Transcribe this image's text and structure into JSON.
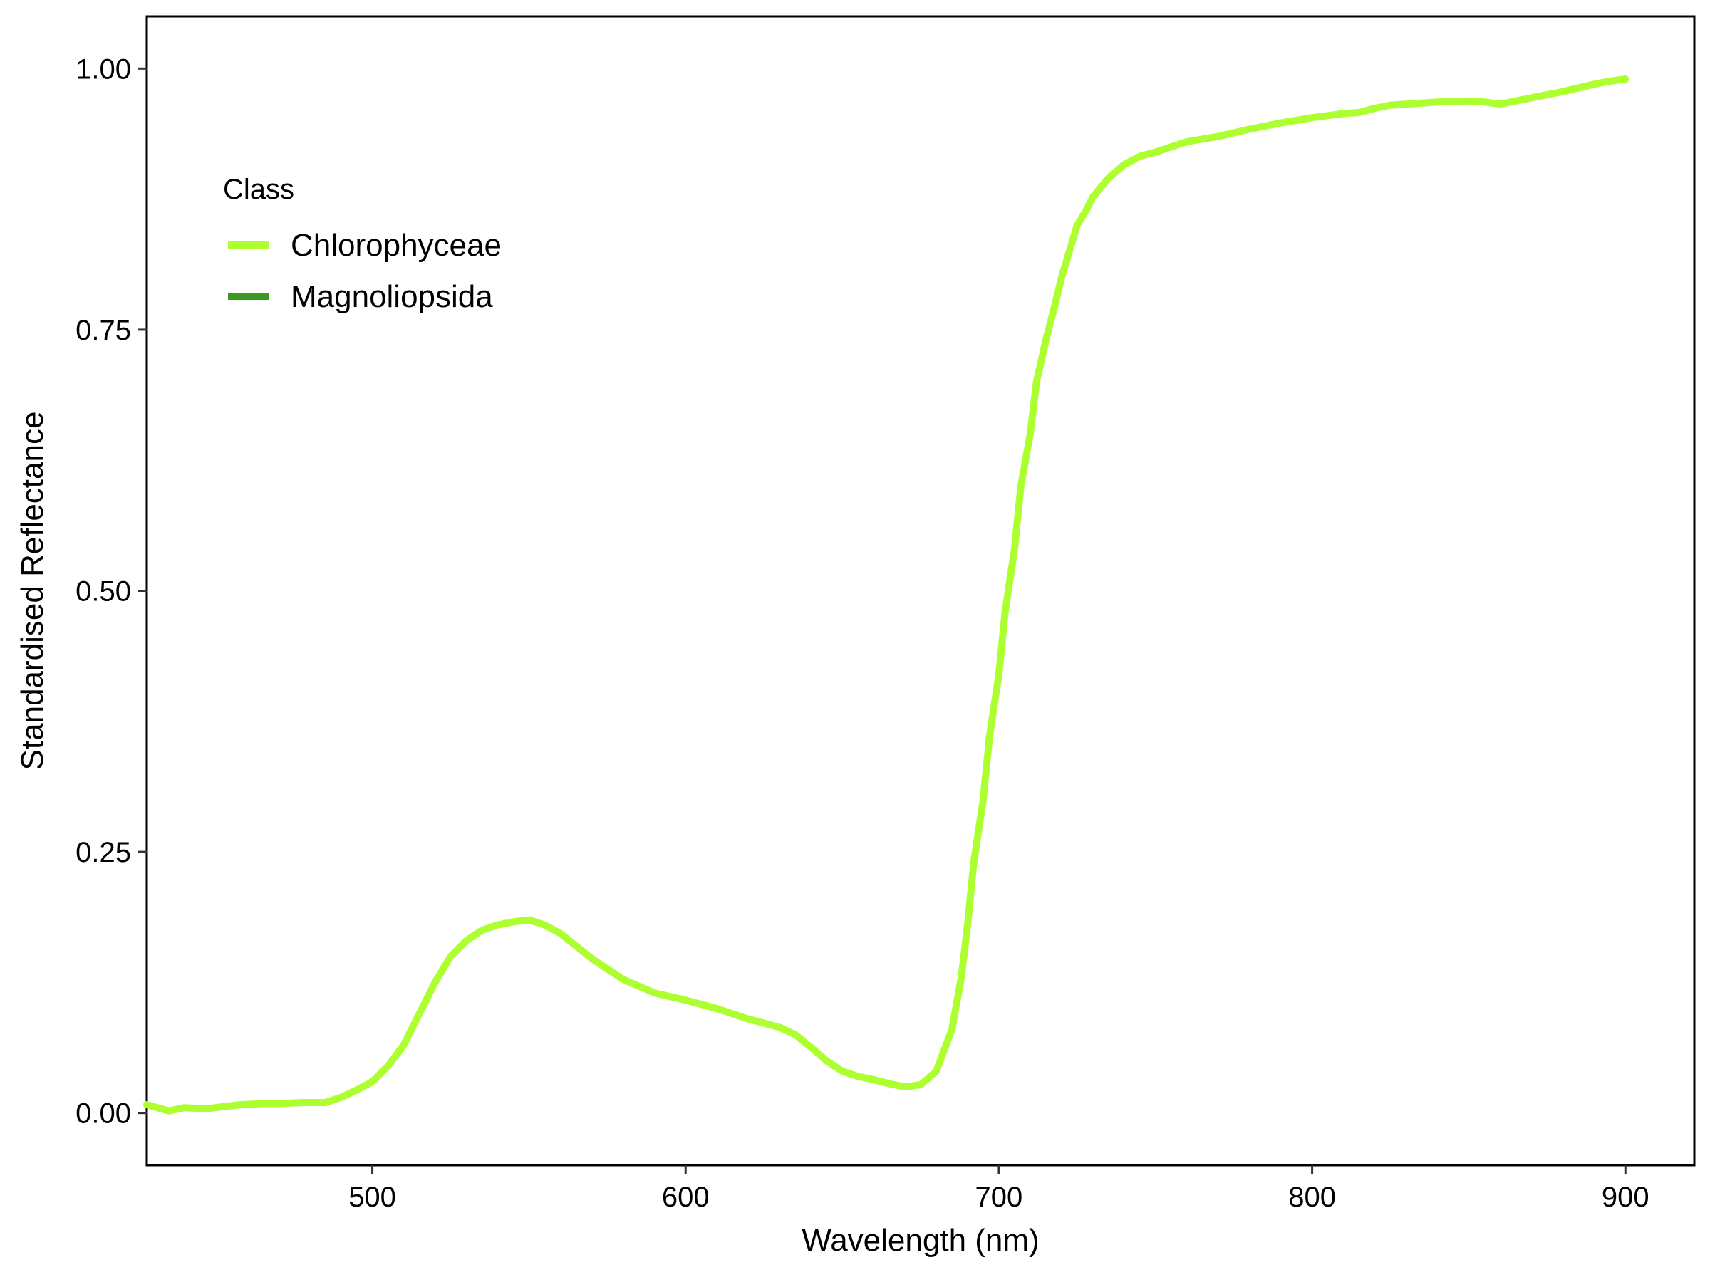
{
  "chart_data": {
    "type": "line",
    "xlabel": "Wavelength (nm)",
    "ylabel": "Standardised Reflectance",
    "xlim": [
      428,
      922
    ],
    "ylim": [
      -0.05,
      1.05
    ],
    "x_ticks": [
      500,
      600,
      700,
      800,
      900
    ],
    "y_ticks": [
      0,
      0.25,
      0.5,
      0.75,
      1
    ],
    "x_tick_labels": [
      "500",
      "600",
      "700",
      "800",
      "900"
    ],
    "y_tick_labels": [
      "0.00",
      "0.25",
      "0.50",
      "0.75",
      "1.00"
    ],
    "grid": false,
    "legend": {
      "title": "Class",
      "placement": "top-left (inside plot)",
      "entries": [
        {
          "label": "Chlorophyceae",
          "color": "#adff2f"
        },
        {
          "label": "Magnoliopsida",
          "color": "#3a9a1f"
        }
      ]
    },
    "series": [
      {
        "name": "Chlorophyceae",
        "color": "#adff2f",
        "x": [
          428,
          435,
          440,
          447,
          452,
          458,
          465,
          470,
          478,
          485,
          490,
          495,
          500,
          505,
          510,
          515,
          520,
          525,
          530,
          535,
          540,
          545,
          550,
          555,
          560,
          565,
          570,
          575,
          580,
          590,
          600,
          610,
          620,
          630,
          635,
          640,
          645,
          650,
          655,
          660,
          665,
          670,
          675,
          680,
          685,
          688,
          690,
          692,
          695,
          697,
          700,
          702,
          705,
          707,
          710,
          712,
          715,
          718,
          720,
          723,
          725,
          728,
          730,
          733,
          735,
          740,
          745,
          750,
          755,
          760,
          770,
          780,
          790,
          800,
          810,
          815,
          820,
          825,
          830,
          840,
          850,
          855,
          860,
          870,
          880,
          890,
          895,
          900
        ],
        "y": [
          0.008,
          0.002,
          0.005,
          0.004,
          0.006,
          0.008,
          0.009,
          0.009,
          0.01,
          0.01,
          0.015,
          0.022,
          0.03,
          0.045,
          0.065,
          0.095,
          0.125,
          0.15,
          0.165,
          0.175,
          0.18,
          0.183,
          0.185,
          0.18,
          0.172,
          0.16,
          0.148,
          0.138,
          0.128,
          0.115,
          0.108,
          0.1,
          0.09,
          0.082,
          0.075,
          0.063,
          0.05,
          0.04,
          0.035,
          0.032,
          0.028,
          0.025,
          0.027,
          0.04,
          0.08,
          0.13,
          0.18,
          0.24,
          0.3,
          0.36,
          0.42,
          0.48,
          0.54,
          0.6,
          0.65,
          0.7,
          0.74,
          0.775,
          0.8,
          0.83,
          0.85,
          0.865,
          0.877,
          0.888,
          0.895,
          0.908,
          0.916,
          0.92,
          0.925,
          0.93,
          0.935,
          0.942,
          0.948,
          0.953,
          0.957,
          0.958,
          0.962,
          0.965,
          0.966,
          0.968,
          0.969,
          0.968,
          0.966,
          0.972,
          0.978,
          0.985,
          0.988,
          0.99
        ]
      }
    ]
  }
}
